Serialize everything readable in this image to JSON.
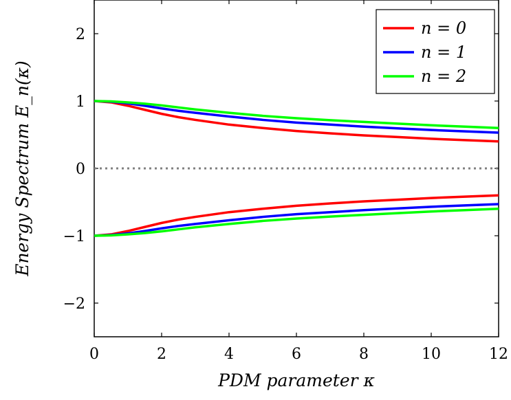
{
  "chart_data": {
    "type": "line",
    "xlabel": "PDM parameter κ",
    "ylabel": "Energy Spectrum E_n(κ)",
    "xlim": [
      0,
      12
    ],
    "ylim": [
      -2.5,
      2.5
    ],
    "x_ticks": [
      "0",
      "2",
      "4",
      "6",
      "8",
      "10",
      "12"
    ],
    "y_ticks": [
      "−2",
      "−1",
      "0",
      "1",
      "2"
    ],
    "grid": false,
    "legend_position": "top-right",
    "x": [
      0,
      0.5,
      1,
      1.5,
      2,
      2.5,
      3,
      4,
      5,
      6,
      7,
      8,
      9,
      10,
      11,
      12
    ],
    "reference_line": {
      "y": 0,
      "style": "dotted",
      "color": "#808080"
    },
    "series": [
      {
        "name": "n = 0",
        "color": "#ff0000",
        "upper": [
          1.0,
          0.98,
          0.93,
          0.87,
          0.81,
          0.76,
          0.72,
          0.65,
          0.6,
          0.555,
          0.52,
          0.49,
          0.465,
          0.44,
          0.42,
          0.4
        ],
        "lower": [
          -1.0,
          -0.98,
          -0.93,
          -0.87,
          -0.81,
          -0.76,
          -0.72,
          -0.65,
          -0.6,
          -0.555,
          -0.52,
          -0.49,
          -0.465,
          -0.44,
          -0.42,
          -0.4
        ]
      },
      {
        "name": "n = 1",
        "color": "#0000ff",
        "upper": [
          1.0,
          0.99,
          0.965,
          0.93,
          0.89,
          0.855,
          0.825,
          0.77,
          0.72,
          0.68,
          0.65,
          0.62,
          0.595,
          0.57,
          0.55,
          0.53
        ],
        "lower": [
          -1.0,
          -0.99,
          -0.965,
          -0.93,
          -0.89,
          -0.855,
          -0.825,
          -0.77,
          -0.72,
          -0.68,
          -0.65,
          -0.62,
          -0.595,
          -0.57,
          -0.55,
          -0.53
        ]
      },
      {
        "name": "n = 2",
        "color": "#00ff00",
        "upper": [
          1.0,
          0.995,
          0.98,
          0.96,
          0.935,
          0.905,
          0.875,
          0.825,
          0.78,
          0.745,
          0.715,
          0.69,
          0.665,
          0.64,
          0.62,
          0.6
        ],
        "lower": [
          -1.0,
          -0.995,
          -0.98,
          -0.96,
          -0.935,
          -0.905,
          -0.875,
          -0.825,
          -0.78,
          -0.745,
          -0.715,
          -0.69,
          -0.665,
          -0.64,
          -0.62,
          -0.6
        ]
      }
    ]
  }
}
